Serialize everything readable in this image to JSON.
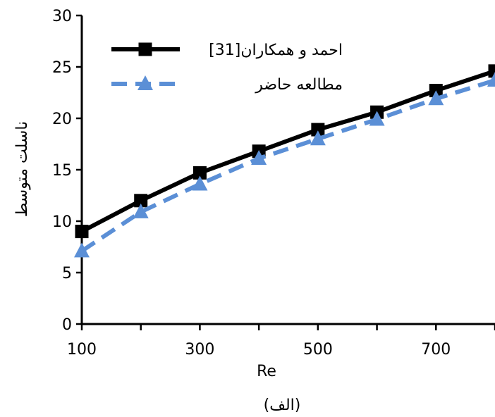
{
  "chart_data": {
    "type": "line",
    "xlabel": "Re",
    "ylabel": "ناسلت متوسط",
    "caption": "(الف)",
    "xlim": [
      100,
      800
    ],
    "ylim": [
      0,
      30
    ],
    "xticks": [
      100,
      300,
      500,
      700
    ],
    "xtick_labels": [
      "100",
      "300",
      "500",
      "700"
    ],
    "yticks": [
      0,
      5,
      10,
      15,
      20,
      25,
      30
    ],
    "ytick_labels": [
      "0",
      "5",
      "10",
      "15",
      "20",
      "25",
      "30"
    ],
    "grid": false,
    "legend_position": "top-left",
    "series": [
      {
        "name": "احمد و همکاران[31]",
        "color": "#000000",
        "line": "solid",
        "marker": "square",
        "x": [
          100,
          200,
          300,
          400,
          500,
          600,
          700,
          800
        ],
        "y": [
          9.0,
          12.0,
          14.7,
          16.8,
          18.9,
          20.6,
          22.7,
          24.6
        ]
      },
      {
        "name": "مطالعه حاضر",
        "color": "#5b8fd6",
        "line": "dashed",
        "marker": "triangle",
        "x": [
          100,
          200,
          300,
          400,
          500,
          600,
          700,
          800
        ],
        "y": [
          7.1,
          10.9,
          13.6,
          16.1,
          18.0,
          19.9,
          21.9,
          23.7
        ]
      }
    ]
  }
}
